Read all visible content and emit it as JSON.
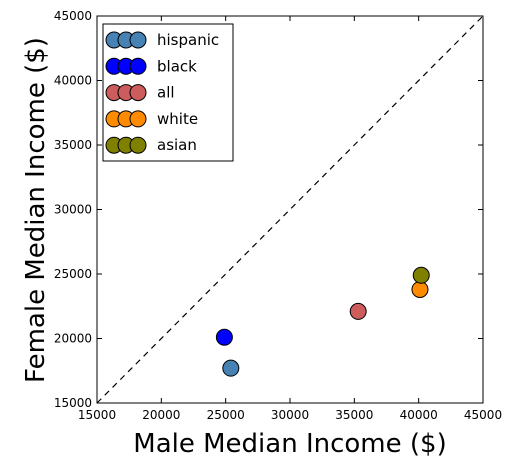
{
  "chart_data": {
    "type": "scatter",
    "xlabel": "Male Median Income ($)",
    "ylabel": "Female Median Income ($)",
    "xlim": [
      15000,
      45000
    ],
    "ylim": [
      15000,
      45000
    ],
    "x_ticks": [
      "15000",
      "20000",
      "25000",
      "30000",
      "35000",
      "40000",
      "45000"
    ],
    "y_ticks": [
      "15000",
      "20000",
      "25000",
      "30000",
      "35000",
      "40000",
      "45000"
    ],
    "grid": false,
    "legend_position": "top-left",
    "reference_line": {
      "type": "diagonal",
      "style": "dashed",
      "from": [
        15000,
        15000
      ],
      "to": [
        45000,
        45000
      ]
    },
    "series": [
      {
        "name": "hispanic",
        "color": "#4682b4",
        "x": [
          25400
        ],
        "y": [
          17700
        ]
      },
      {
        "name": "black",
        "color": "#0000ff",
        "x": [
          24900
        ],
        "y": [
          20100
        ]
      },
      {
        "name": "all",
        "color": "#cd5c5c",
        "x": [
          35300
        ],
        "y": [
          22100
        ]
      },
      {
        "name": "white",
        "color": "#ff8c00",
        "x": [
          40100
        ],
        "y": [
          23800
        ]
      },
      {
        "name": "asian",
        "color": "#808000",
        "x": [
          40200
        ],
        "y": [
          24900
        ]
      }
    ]
  }
}
